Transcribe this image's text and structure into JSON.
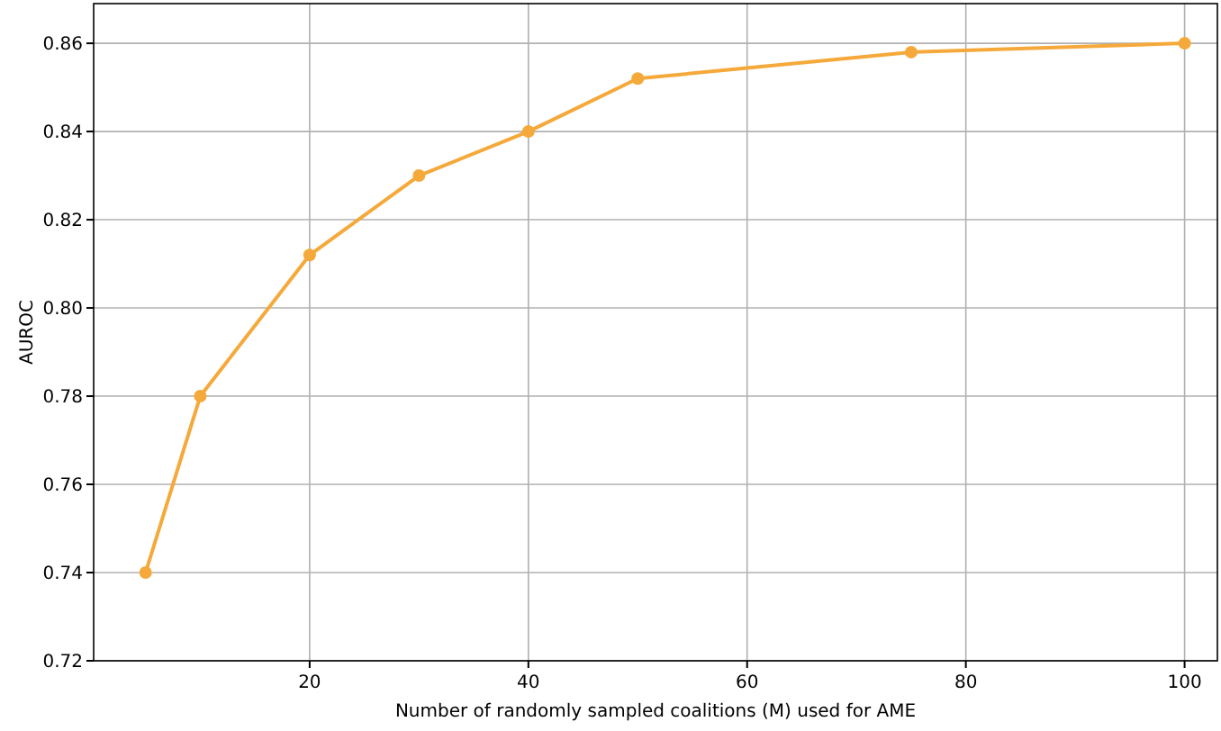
{
  "chart_data": {
    "type": "line",
    "xlabel": "Number of randomly sampled coalitions (M) used for AME",
    "ylabel": "AUROC",
    "x": [
      5,
      10,
      20,
      30,
      40,
      50,
      75,
      100
    ],
    "series": [
      {
        "color": "#f5a93a",
        "values": [
          0.74,
          0.78,
          0.812,
          0.83,
          0.84,
          0.852,
          0.858,
          0.86
        ]
      }
    ],
    "xlim": [
      0.25,
      103
    ],
    "xticks": [
      20,
      40,
      60,
      80,
      100
    ],
    "ylim": [
      0.72,
      0.869
    ],
    "yticks": [
      {
        "value": 0.72,
        "label": "0.72"
      },
      {
        "value": 0.74,
        "label": "0.74"
      },
      {
        "value": 0.76,
        "label": "0.76"
      },
      {
        "value": 0.78,
        "label": "0.78"
      },
      {
        "value": 0.8,
        "label": "0.80"
      },
      {
        "value": 0.82,
        "label": "0.82"
      },
      {
        "value": 0.84,
        "label": "0.84"
      },
      {
        "value": 0.86,
        "label": "0.86"
      }
    ],
    "grid": true,
    "marker": "circle",
    "line_style": "solid"
  }
}
